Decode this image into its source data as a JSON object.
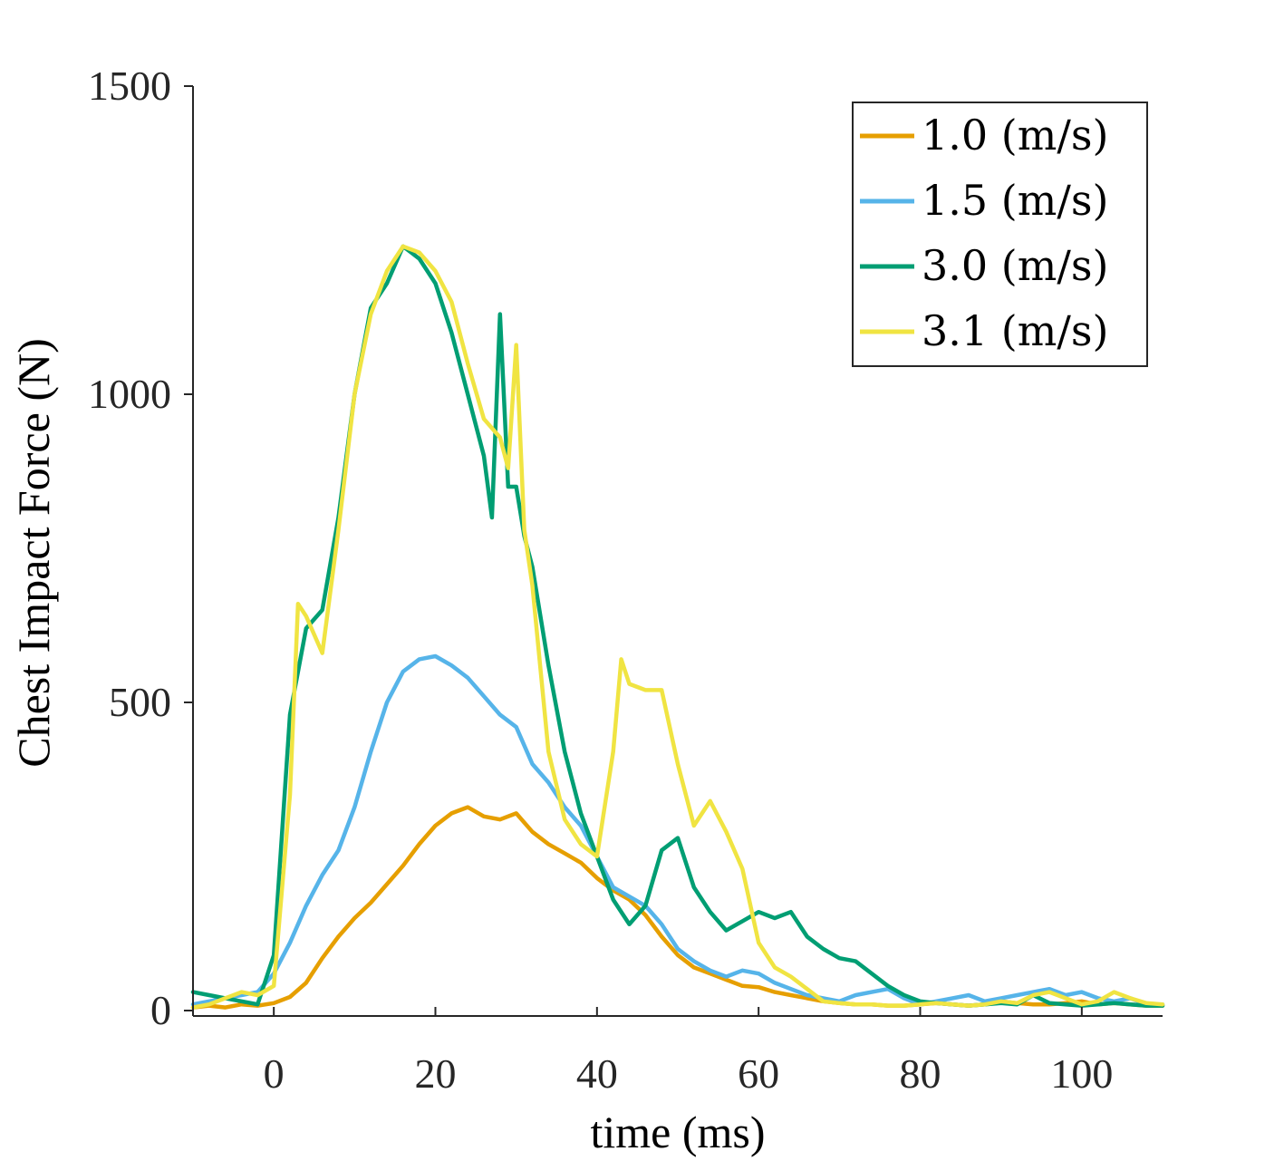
{
  "chart_data": {
    "type": "line",
    "title": "",
    "xlabel": "time (ms)",
    "ylabel": "Chest Impact Force (N)",
    "xlim": [
      -10,
      110
    ],
    "ylim": [
      0,
      1500
    ],
    "xticks": [
      0,
      20,
      40,
      60,
      80,
      100
    ],
    "yticks": [
      0,
      500,
      1000,
      1500
    ],
    "grid": false,
    "legend_position": "top-right",
    "series": [
      {
        "name": "1.0 (m/s)",
        "color": "#E69F00",
        "x": [
          -10,
          -8,
          -6,
          -4,
          -2,
          0,
          2,
          4,
          6,
          8,
          10,
          12,
          14,
          16,
          18,
          20,
          22,
          24,
          26,
          28,
          30,
          32,
          34,
          36,
          38,
          40,
          42,
          44,
          46,
          48,
          50,
          52,
          54,
          56,
          58,
          60,
          62,
          64,
          66,
          68,
          70,
          72,
          74,
          76,
          78,
          80,
          82,
          84,
          86,
          88,
          90,
          92,
          94,
          96,
          98,
          100,
          102,
          104,
          106,
          108,
          110
        ],
        "y": [
          5,
          8,
          5,
          10,
          8,
          12,
          22,
          45,
          85,
          120,
          150,
          175,
          205,
          235,
          270,
          300,
          320,
          330,
          315,
          310,
          320,
          290,
          270,
          255,
          240,
          215,
          195,
          180,
          155,
          120,
          90,
          70,
          60,
          50,
          40,
          38,
          30,
          25,
          20,
          15,
          12,
          10,
          10,
          8,
          8,
          10,
          12,
          10,
          8,
          10,
          15,
          12,
          10,
          10,
          12,
          15,
          10,
          12,
          10,
          8,
          8
        ]
      },
      {
        "name": "1.5 (m/s)",
        "color": "#56B4E9",
        "x": [
          -10,
          -8,
          -6,
          -4,
          -2,
          0,
          2,
          4,
          6,
          8,
          10,
          12,
          14,
          16,
          18,
          20,
          22,
          24,
          26,
          28,
          30,
          32,
          34,
          36,
          38,
          40,
          42,
          44,
          46,
          48,
          50,
          52,
          54,
          56,
          58,
          60,
          62,
          64,
          66,
          68,
          70,
          72,
          74,
          76,
          78,
          80,
          82,
          84,
          86,
          88,
          90,
          92,
          94,
          96,
          98,
          100,
          102,
          104,
          106,
          108,
          110
        ],
        "y": [
          10,
          15,
          20,
          25,
          30,
          60,
          110,
          170,
          220,
          260,
          330,
          420,
          500,
          550,
          570,
          575,
          560,
          540,
          510,
          480,
          460,
          400,
          370,
          330,
          300,
          250,
          200,
          185,
          170,
          140,
          100,
          80,
          65,
          55,
          65,
          60,
          45,
          35,
          25,
          20,
          15,
          25,
          30,
          35,
          20,
          10,
          15,
          20,
          25,
          15,
          20,
          25,
          30,
          35,
          25,
          30,
          20,
          15,
          20,
          10,
          10
        ]
      },
      {
        "name": "3.0 (m/s)",
        "color": "#009E73",
        "x": [
          -10,
          -8,
          -6,
          -4,
          -2,
          0,
          2,
          4,
          6,
          8,
          10,
          12,
          14,
          16,
          17,
          18,
          20,
          22,
          24,
          26,
          27,
          28,
          29,
          30,
          31,
          32,
          34,
          36,
          38,
          40,
          42,
          44,
          46,
          48,
          50,
          52,
          54,
          56,
          58,
          60,
          62,
          64,
          66,
          68,
          70,
          72,
          74,
          76,
          78,
          80,
          82,
          84,
          86,
          88,
          90,
          92,
          94,
          96,
          98,
          100,
          102,
          104,
          106,
          108,
          110
        ],
        "y": [
          30,
          25,
          20,
          15,
          10,
          90,
          480,
          620,
          650,
          800,
          1000,
          1140,
          1180,
          1240,
          1230,
          1220,
          1180,
          1100,
          1000,
          900,
          800,
          1130,
          850,
          850,
          770,
          720,
          560,
          420,
          320,
          250,
          180,
          140,
          170,
          260,
          280,
          200,
          160,
          130,
          145,
          160,
          150,
          160,
          120,
          100,
          85,
          80,
          60,
          40,
          25,
          15,
          12,
          10,
          8,
          10,
          12,
          10,
          25,
          12,
          10,
          8,
          10,
          12,
          10,
          8,
          8
        ]
      },
      {
        "name": "3.1 (m/s)",
        "color": "#F0E442",
        "x": [
          -10,
          -8,
          -6,
          -4,
          -2,
          0,
          2,
          3,
          4,
          6,
          8,
          10,
          12,
          14,
          16,
          18,
          20,
          22,
          24,
          26,
          28,
          29,
          30,
          31,
          32,
          34,
          36,
          38,
          40,
          42,
          43,
          44,
          46,
          48,
          50,
          52,
          54,
          56,
          58,
          60,
          62,
          64,
          66,
          68,
          70,
          72,
          74,
          76,
          78,
          80,
          82,
          84,
          86,
          88,
          90,
          92,
          94,
          96,
          98,
          100,
          102,
          104,
          106,
          108,
          110
        ],
        "y": [
          5,
          10,
          20,
          30,
          25,
          40,
          350,
          660,
          640,
          580,
          780,
          1000,
          1130,
          1200,
          1240,
          1230,
          1200,
          1150,
          1050,
          960,
          930,
          880,
          1080,
          780,
          690,
          420,
          310,
          270,
          250,
          420,
          570,
          530,
          520,
          520,
          400,
          300,
          340,
          290,
          230,
          110,
          70,
          55,
          35,
          15,
          12,
          10,
          10,
          8,
          8,
          10,
          12,
          10,
          8,
          10,
          15,
          12,
          25,
          30,
          20,
          10,
          15,
          30,
          20,
          12,
          10
        ]
      }
    ]
  }
}
